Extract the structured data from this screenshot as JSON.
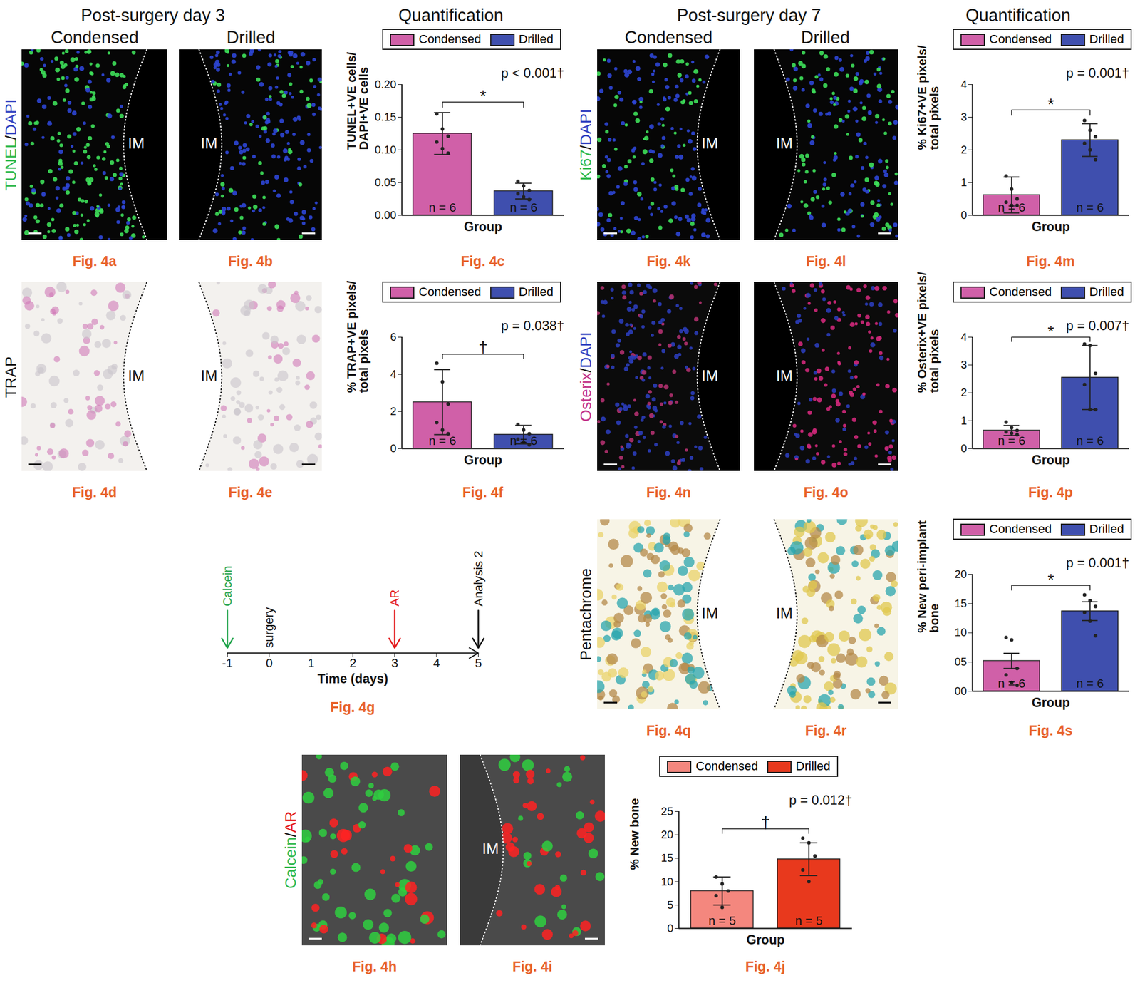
{
  "sections": [
    {
      "title": "Post-surgery day 3",
      "quantification": "Quantification",
      "columns": [
        "Condensed",
        "Drilled"
      ]
    },
    {
      "title": "Post-surgery day 7",
      "quantification": "Quantification",
      "columns": [
        "Condensed",
        "Drilled"
      ]
    }
  ],
  "image_rows": [
    {
      "stain": [
        {
          "text": "TUNEL",
          "color": "#2db84a"
        },
        {
          "text": "/",
          "color": "#111111"
        },
        {
          "text": "DAPI",
          "color": "#2f3fc0"
        }
      ],
      "panels": [
        {
          "caption": "Fig. 4a",
          "marker": "IM"
        },
        {
          "caption": "Fig. 4b",
          "marker": "IM"
        }
      ]
    },
    {
      "stain": [
        {
          "text": "TRAP",
          "color": "#111111"
        }
      ],
      "panels": [
        {
          "caption": "Fig. 4d",
          "marker": "IM"
        },
        {
          "caption": "Fig. 4e",
          "marker": "IM"
        }
      ]
    },
    {
      "stain": [
        {
          "text": "Calcein",
          "color": "#2db84a"
        },
        {
          "text": "/",
          "color": "#111111"
        },
        {
          "text": "AR",
          "color": "#e31a1c"
        }
      ],
      "panels": [
        {
          "caption": "Fig. 4h"
        },
        {
          "caption": "Fig. 4i",
          "marker": "IM"
        }
      ]
    },
    {
      "stain": [
        {
          "text": "Ki67",
          "color": "#2db84a"
        },
        {
          "text": "/",
          "color": "#111111"
        },
        {
          "text": "DAPI",
          "color": "#2f3fc0"
        }
      ],
      "panels": [
        {
          "caption": "Fig. 4k",
          "marker": "IM"
        },
        {
          "caption": "Fig. 4l",
          "marker": "IM"
        }
      ]
    },
    {
      "stain": [
        {
          "text": "Osterix",
          "color": "#c2338a"
        },
        {
          "text": "/",
          "color": "#111111"
        },
        {
          "text": "DAPI",
          "color": "#2f3fc0"
        }
      ],
      "panels": [
        {
          "caption": "Fig. 4n",
          "marker": "IM"
        },
        {
          "caption": "Fig. 4o",
          "marker": "IM"
        }
      ]
    },
    {
      "stain": [
        {
          "text": "Pentachrome",
          "color": "#111111"
        }
      ],
      "panels": [
        {
          "caption": "Fig. 4q",
          "marker": "IM"
        },
        {
          "caption": "Fig. 4r",
          "marker": "IM"
        }
      ]
    }
  ],
  "chart_data": [
    {
      "type": "bar",
      "caption": "Fig. 4c",
      "categories": [
        "Condensed",
        "Drilled"
      ],
      "colors": [
        "#d060a8",
        "#3f4fae"
      ],
      "values": [
        0.125,
        0.037
      ],
      "errors": [
        0.032,
        0.012
      ],
      "points": [
        [
          0.155,
          0.132,
          0.121,
          0.112,
          0.102,
          0.095
        ],
        [
          0.052,
          0.045,
          0.038,
          0.033,
          0.028,
          0.024
        ]
      ],
      "n_labels": [
        "n = 6",
        "n = 6"
      ],
      "xlabel": "Group",
      "ylabel": "TUNEL+VE cells/\nDAPI+VE cells",
      "ylim": [
        0,
        0.2
      ],
      "yticks": [
        {
          "value": 0,
          "label": "0.00"
        },
        0.05,
        {
          "value": 0.1,
          "label": "0.10"
        },
        0.15,
        {
          "value": 0.2,
          "label": "0.20"
        }
      ],
      "legend": "top",
      "tick_labels": "y",
      "annotations": {
        "bracket": "*",
        "p": "p < 0.001†"
      }
    },
    {
      "type": "bar",
      "caption": "Fig. 4f",
      "categories": [
        "Condensed",
        "Drilled"
      ],
      "colors": [
        "#d060a8",
        "#3f4fae"
      ],
      "values": [
        2.5,
        0.75
      ],
      "errors": [
        1.75,
        0.5
      ],
      "points": [
        [
          4.6,
          3.6,
          2.4,
          1.4,
          1.0,
          0.8
        ],
        [
          1.3,
          1.0,
          0.8,
          0.5,
          0.35,
          0.2
        ]
      ],
      "n_labels": [
        "n = 6",
        "n = 6"
      ],
      "xlabel": "Group",
      "ylabel": "% TRAP+VE pixels/\ntotal pixels",
      "ylim": [
        0,
        6
      ],
      "yticks": [
        0,
        2,
        4,
        6
      ],
      "legend": "top",
      "tick_labels": "y",
      "annotations": {
        "bracket": "†",
        "p": "p = 0.038†"
      }
    },
    {
      "type": "timeline",
      "caption": "Fig. 4g",
      "xlabel": "Time (days)",
      "xlim": [
        -1,
        5
      ],
      "xticks": [
        -1,
        0,
        1,
        2,
        3,
        4,
        5
      ],
      "events": [
        {
          "x": -1,
          "label": "Calcein",
          "color": "#1fa34a",
          "marker": "arrow"
        },
        {
          "x": 0,
          "label": "surgery",
          "color": "#111111",
          "marker": "none"
        },
        {
          "x": 3,
          "label": "AR",
          "color": "#e31a1c",
          "marker": "arrow"
        },
        {
          "x": 5,
          "label": "Analysis 2",
          "color": "#111111",
          "marker": "arrow"
        }
      ]
    },
    {
      "type": "bar",
      "caption": "Fig. 4j",
      "categories": [
        "Condensed",
        "Drilled"
      ],
      "colors": [
        "#f4877e",
        "#e8391d"
      ],
      "values": [
        8,
        14.8
      ],
      "errors": [
        3,
        3.5
      ],
      "points": [
        [
          11,
          9.5,
          8,
          7,
          4.5
        ],
        [
          19.3,
          18.3,
          15.5,
          12.5,
          10
        ]
      ],
      "n_labels": [
        "n = 5",
        "n = 5"
      ],
      "xlabel": "Group",
      "ylabel": "% New bone",
      "ylim": [
        0,
        25
      ],
      "yticks": [
        0,
        5,
        10,
        15,
        20,
        25
      ],
      "legend": "top",
      "tick_labels": "y",
      "annotations": {
        "bracket": "†",
        "p": "p = 0.012†"
      }
    },
    {
      "type": "bar",
      "caption": "Fig. 4m",
      "categories": [
        "Condensed",
        "Drilled"
      ],
      "colors": [
        "#d060a8",
        "#3f4fae"
      ],
      "values": [
        0.62,
        2.3
      ],
      "errors": [
        0.55,
        0.5
      ],
      "points": [
        [
          1.2,
          0.8,
          0.5,
          0.4,
          0.3,
          0.3
        ],
        [
          2.9,
          2.6,
          2.4,
          2.2,
          2.0,
          1.7
        ]
      ],
      "n_labels": [
        "n = 6",
        "n = 6"
      ],
      "xlabel": "Group",
      "ylabel": "% Ki67+VE pixels/\ntotal pixels",
      "ylim": [
        0,
        4
      ],
      "yticks": [
        0,
        1,
        2,
        3,
        4
      ],
      "legend": "top",
      "tick_labels": "y",
      "annotations": {
        "bracket": "*",
        "p": "p = 0.001†"
      }
    },
    {
      "type": "bar",
      "caption": "Fig. 4p",
      "categories": [
        "Condensed",
        "Drilled"
      ],
      "colors": [
        "#d060a8",
        "#3f4fae"
      ],
      "values": [
        0.65,
        2.55
      ],
      "errors": [
        0.18,
        1.15
      ],
      "points": [
        [
          0.95,
          0.75,
          0.65,
          0.6,
          0.55,
          0.5
        ],
        [
          3.75,
          3.7,
          2.7,
          2.3,
          1.4,
          1.4
        ]
      ],
      "n_labels": [
        "n = 6",
        "n = 6"
      ],
      "xlabel": "Group",
      "ylabel": "% Osterix+VE pixels/\ntotal pixels",
      "ylim": [
        0,
        4
      ],
      "yticks": [
        0,
        1,
        2,
        3,
        4
      ],
      "legend": "top",
      "tick_labels": "y",
      "annotations": {
        "bracket": "*",
        "p": "p = 0.007†"
      }
    },
    {
      "type": "bar",
      "caption": "Fig. 4s",
      "categories": [
        "Condensed",
        "Drilled"
      ],
      "colors": [
        "#d060a8",
        "#3f4fae"
      ],
      "values": [
        5.2,
        13.7
      ],
      "errors": [
        1.3,
        1.6
      ],
      "points": [
        [
          9.2,
          8.8,
          3.9,
          2.8,
          1.5,
          1.0
        ],
        [
          16.5,
          15.5,
          14.5,
          13.5,
          12.0,
          9.5
        ]
      ],
      "n_labels": [
        "n = 6",
        "n = 6"
      ],
      "xlabel": "Group",
      "ylabel": "% New peri-implant\nbone",
      "ylim": [
        0,
        20
      ],
      "yticks": [
        {
          "value": 0,
          "label": "00"
        },
        {
          "value": 5,
          "label": "05"
        },
        10,
        15,
        20
      ],
      "legend": "top",
      "tick_labels": "y",
      "annotations": {
        "bracket": "*",
        "p": "p = 0.001†"
      }
    }
  ]
}
